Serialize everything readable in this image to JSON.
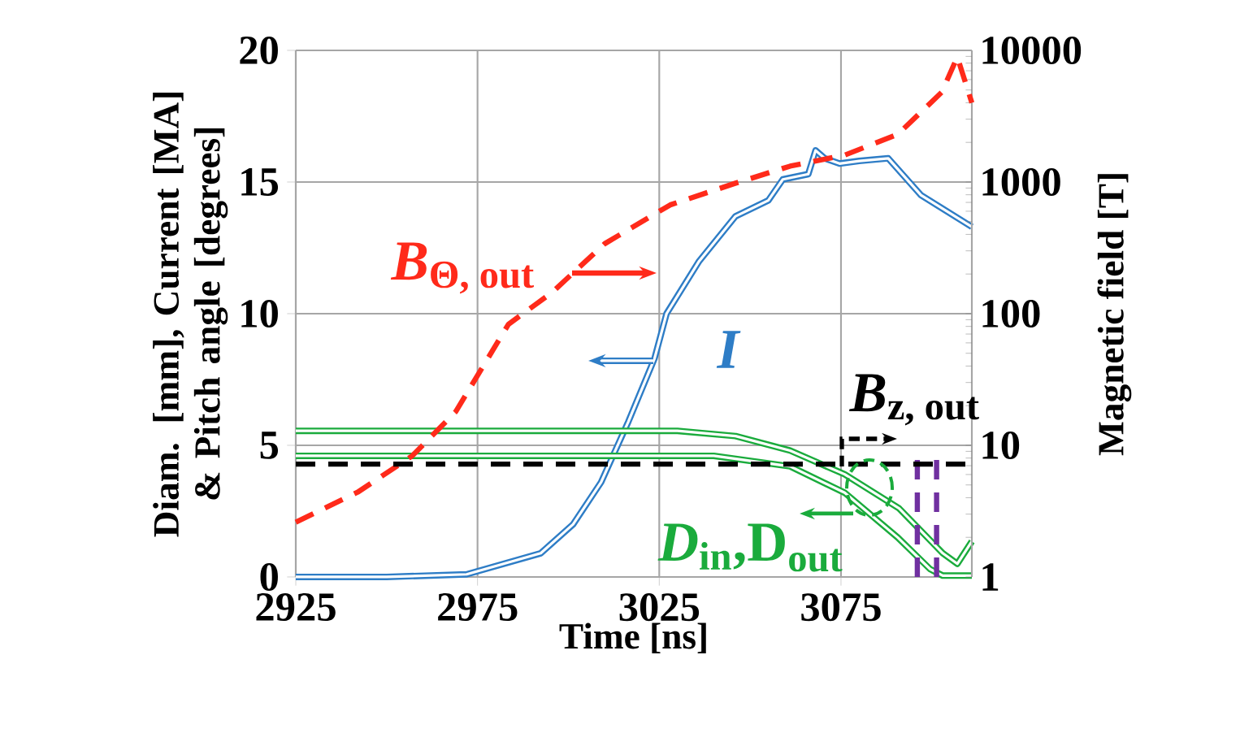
{
  "chart_data": {
    "type": "line",
    "xlabel": "Time [ns]",
    "ylabel": "Diam. [mm], Current [MA] & Pitch angle [degrees]",
    "y2label": "Magnetic field [T]",
    "xlim": [
      2925,
      3111
    ],
    "xticks": [
      2925,
      2975,
      3025,
      3075
    ],
    "ylim": [
      0,
      20
    ],
    "yticks": [
      0,
      5,
      10,
      15,
      20
    ],
    "y2lim": [
      1,
      10000
    ],
    "y2ticks": [
      1,
      10,
      100,
      1000,
      10000
    ],
    "log": "y2",
    "grid": true,
    "series": [
      {
        "name": "\\textit{B}_{\\text{Θ, out}}",
        "color": "#ff2a1a",
        "axis": "y2",
        "line_style": "dashed",
        "x": [
          2925,
          2942,
          2957,
          2969,
          2983.5,
          2995.5,
          3010,
          3028,
          3046,
          3061,
          3076,
          3090.6,
          3102.7,
          3107,
          3111
        ],
        "values": [
          2.6,
          4.4,
          8.3,
          18,
          83,
          145,
          340,
          670,
          980,
          1320,
          1600,
          2300,
          4800,
          8900,
          4000
        ]
      },
      {
        "name": "\\textit{I}",
        "color": "#2e7dc6",
        "line_style": "solid",
        "x": [
          2925,
          2950,
          2972,
          2992.4,
          3001.3,
          3009,
          3016.5,
          3023.7,
          3027,
          3036,
          3046,
          3055,
          3059,
          3066,
          3068,
          3070.5,
          3074.6,
          3080,
          3088,
          3097,
          3111
        ],
        "values": [
          0,
          0,
          0.1,
          0.9,
          2.0,
          3.6,
          5.9,
          8.3,
          10,
          12.0,
          13.7,
          14.3,
          15.1,
          15.3,
          16.2,
          15.9,
          15.7,
          15.8,
          15.9,
          14.5,
          13.3
        ]
      },
      {
        "name": "\\textit{D}_{\\text{in}}\\text{,D}_{\\text{out}}",
        "color": "#1aab3c",
        "line_style": "solid",
        "x": [
          2925,
          3030,
          3046,
          3061,
          3076,
          3091,
          3103,
          3107,
          3111
        ],
        "values": [
          5.55,
          5.55,
          5.35,
          4.8,
          3.9,
          2.6,
          0.9,
          0.5,
          1.35
        ]
      },
      {
        "color": "#1aab3c",
        "line_style": "solid",
        "x": [
          2925,
          3040,
          3061,
          3076,
          3090.6,
          3099.5,
          3103,
          3111
        ],
        "values": [
          4.6,
          4.6,
          4.2,
          3.2,
          1.5,
          0.3,
          0.05,
          0.05
        ]
      },
      {
        "name": "\\textit{B}_{\\text{z, out}}",
        "color": "#000000",
        "axis": "y2",
        "line_style": "dashed",
        "x": [
          2925,
          3111
        ],
        "values": [
          7.2,
          7.2
        ]
      },
      {
        "color": "#7030a0",
        "line_style": "dashed",
        "x": [
          3096,
          3096
        ],
        "values": [
          0,
          4.6
        ]
      },
      {
        "color": "#7030a0",
        "line_style": "dashed",
        "x": [
          3101.3,
          3101.3
        ],
        "values": [
          0,
          4.6
        ]
      }
    ]
  }
}
